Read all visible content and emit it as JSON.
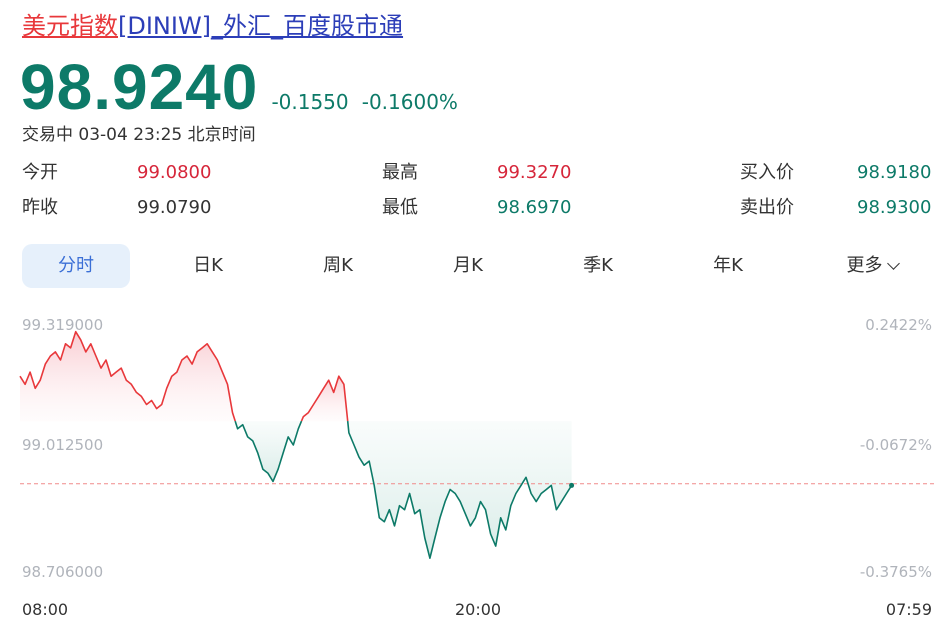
{
  "header": {
    "title_link_red": "美元指数",
    "title_link_blue": "[DINIW]_外汇_百度股市通",
    "price": "98.9240",
    "change": "-0.1550",
    "change_pct": "-0.1600%",
    "status": "交易中 03-04 23:25 北京时间"
  },
  "stats": {
    "open_label": "今开",
    "open_value": "99.0800",
    "high_label": "最高",
    "high_value": "99.3270",
    "bid_label": "买入价",
    "bid_value": "98.9180",
    "prev_close_label": "昨收",
    "prev_close_value": "99.0790",
    "low_label": "最低",
    "low_value": "98.6970",
    "ask_label": "卖出价",
    "ask_value": "98.9300"
  },
  "tabs": [
    "分时",
    "日K",
    "周K",
    "月K",
    "季K",
    "年K",
    "更多"
  ],
  "active_tab": "分时",
  "colors": {
    "up": "#e8383b",
    "down": "#0d7a68",
    "ref_line": "#f08a8a",
    "accent": "#3b6fd6"
  },
  "chart_data": {
    "type": "line",
    "y_left_ticks": [
      "99.319000",
      "99.012500",
      "98.706000"
    ],
    "y_right_ticks": [
      "0.2422%",
      "-0.0672%",
      "-0.3765%"
    ],
    "x_ticks": [
      "08:00",
      "20:00",
      "07:59"
    ],
    "ylim": [
      98.706,
      99.319
    ],
    "reference_value": 98.924,
    "prev_close": 99.079,
    "series": [
      {
        "values": [
          99.19,
          99.17,
          99.2,
          99.16,
          99.18,
          99.22,
          99.24,
          99.25,
          99.23,
          99.27,
          99.26,
          99.3,
          99.28,
          99.25,
          99.27,
          99.24,
          99.21,
          99.23,
          99.19,
          99.2,
          99.21,
          99.18,
          99.17,
          99.15,
          99.14,
          99.12,
          99.13,
          99.11,
          99.12,
          99.16,
          99.19,
          99.2,
          99.23,
          99.24,
          99.22,
          99.25,
          99.26,
          99.27,
          99.25,
          99.23,
          99.2,
          99.17,
          99.1,
          99.06,
          99.07,
          99.04,
          99.03,
          99.0,
          98.96,
          98.95,
          98.93,
          98.96,
          99.0,
          99.04,
          99.02,
          99.06,
          99.09,
          99.1,
          99.12,
          99.14,
          99.16,
          99.18,
          99.15,
          99.19,
          99.17,
          99.05,
          99.02,
          98.99,
          98.97,
          98.98,
          98.92,
          98.84,
          98.83,
          98.86,
          98.82,
          98.87,
          98.86,
          98.9,
          98.85,
          98.86,
          98.79,
          98.74,
          98.79,
          98.84,
          98.88,
          98.91,
          98.9,
          98.88,
          98.85,
          98.82,
          98.84,
          98.88,
          98.86,
          98.8,
          98.77,
          98.84,
          98.81,
          98.87,
          98.9,
          98.92,
          98.94,
          98.9,
          98.88,
          98.9,
          98.91,
          98.92,
          98.86,
          98.88,
          98.9,
          98.92
        ],
        "from_x_index": 0
      }
    ]
  }
}
